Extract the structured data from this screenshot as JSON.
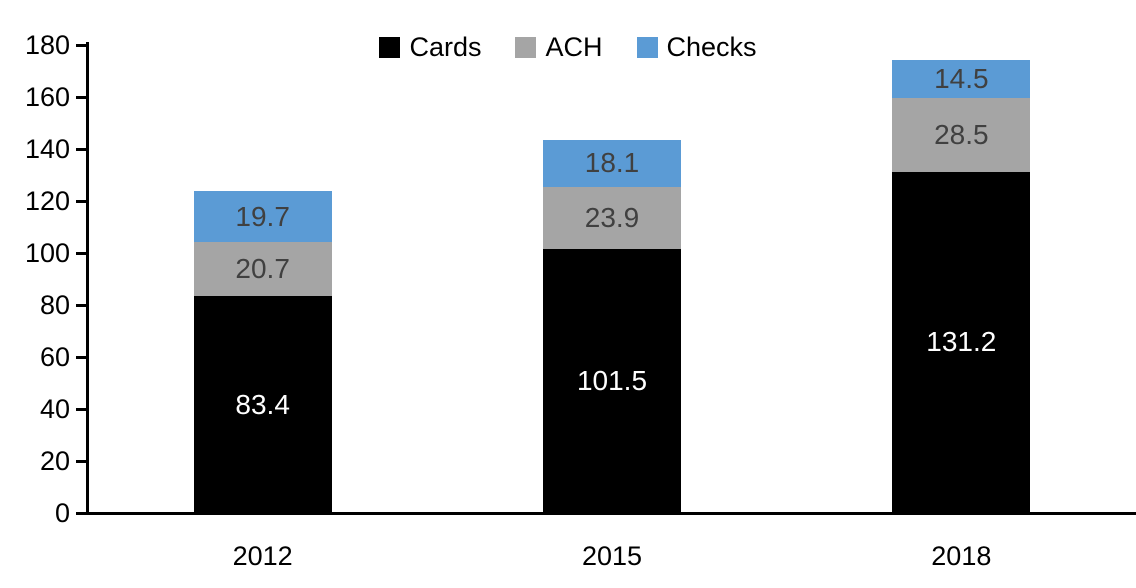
{
  "chart_data": {
    "type": "bar",
    "stacked": true,
    "title": "",
    "xlabel": "",
    "ylabel": "",
    "categories": [
      "2012",
      "2015",
      "2018"
    ],
    "series": [
      {
        "name": "Cards",
        "color": "#000000",
        "label_color": "#ffffff",
        "values": [
          83.4,
          101.5,
          131.2
        ]
      },
      {
        "name": "ACH",
        "color": "#a5a5a5",
        "label_color": "#404040",
        "values": [
          20.7,
          23.9,
          28.5
        ]
      },
      {
        "name": "Checks",
        "color": "#5b9bd5",
        "label_color": "#404040",
        "values": [
          19.7,
          18.1,
          14.5
        ]
      }
    ],
    "totals": [
      123.8,
      143.5,
      174.2
    ],
    "ylim": [
      0,
      180
    ],
    "yticks": [
      0,
      20,
      40,
      60,
      80,
      100,
      120,
      140,
      160,
      180
    ],
    "grid": false,
    "legend_position": "top-center",
    "axis_color": "#000000",
    "tick_label_color": "#000000"
  }
}
